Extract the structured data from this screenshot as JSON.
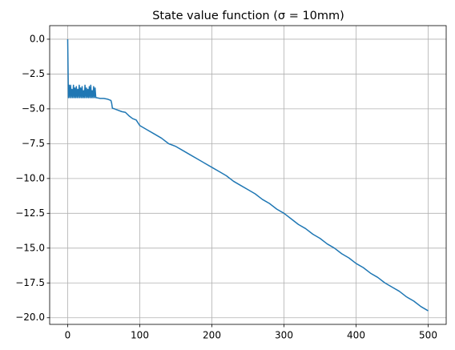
{
  "chart_data": {
    "type": "line",
    "title": "State value function (σ = 10mm)",
    "x": [
      0,
      1,
      2,
      3,
      4,
      5,
      6,
      7,
      8,
      9,
      10,
      11,
      12,
      13,
      14,
      15,
      16,
      17,
      18,
      19,
      20,
      21,
      22,
      23,
      24,
      25,
      26,
      27,
      28,
      29,
      30,
      31,
      32,
      33,
      34,
      35,
      36,
      37,
      38,
      39,
      40,
      45,
      50,
      55,
      60,
      61,
      62,
      65,
      70,
      75,
      80,
      85,
      90,
      95,
      100,
      110,
      120,
      130,
      140,
      150,
      160,
      170,
      180,
      190,
      200,
      210,
      220,
      230,
      240,
      250,
      260,
      270,
      280,
      290,
      300,
      310,
      320,
      330,
      340,
      350,
      360,
      370,
      380,
      390,
      400,
      410,
      420,
      430,
      440,
      450,
      460,
      470,
      480,
      490,
      500
    ],
    "series": [
      {
        "color": "#1f77b4",
        "values": [
          0,
          -4.2,
          -3.3,
          -4.2,
          -3.3,
          -4.2,
          -3.6,
          -4.2,
          -3.3,
          -4.2,
          -3.5,
          -4.2,
          -3.4,
          -4.2,
          -3.6,
          -4.2,
          -3.3,
          -4.2,
          -3.5,
          -4.2,
          -3.4,
          -4.2,
          -3.7,
          -4.2,
          -3.3,
          -4.2,
          -3.5,
          -4.2,
          -3.6,
          -4.2,
          -3.4,
          -4.2,
          -3.3,
          -4.2,
          -3.7,
          -4.2,
          -3.4,
          -4.2,
          -3.5,
          -4.2,
          -4.2,
          -4.25,
          -4.25,
          -4.3,
          -4.4,
          -4.6,
          -4.95,
          -5.0,
          -5.1,
          -5.2,
          -5.25,
          -5.5,
          -5.7,
          -5.8,
          -6.2,
          -6.5,
          -6.8,
          -7.1,
          -7.5,
          -7.7,
          -8.0,
          -8.3,
          -8.6,
          -8.9,
          -9.2,
          -9.5,
          -9.8,
          -10.2,
          -10.5,
          -10.8,
          -11.1,
          -11.5,
          -11.8,
          -12.2,
          -12.5,
          -12.9,
          -13.3,
          -13.6,
          -14.0,
          -14.3,
          -14.7,
          -15.0,
          -15.4,
          -15.7,
          -16.1,
          -16.4,
          -16.8,
          -17.1,
          -17.5,
          -17.8,
          -18.1,
          -18.5,
          -18.8,
          -19.2,
          -19.5
        ]
      }
    ],
    "xlim": [
      -25,
      525
    ],
    "xticks": [
      0,
      100,
      200,
      300,
      400,
      500
    ],
    "ylim": [
      -20.475,
      0.975
    ],
    "yticks": [
      {
        "value": 0,
        "label": "0.0"
      },
      {
        "value": -2.5,
        "label": "−2.5"
      },
      {
        "value": -5,
        "label": "−5.0"
      },
      {
        "value": -7.5,
        "label": "−7.5"
      },
      {
        "value": -10,
        "label": "−10.0"
      },
      {
        "value": -12.5,
        "label": "−12.5"
      },
      {
        "value": -15,
        "label": "−15.0"
      },
      {
        "value": -17.5,
        "label": "−17.5"
      },
      {
        "value": -20,
        "label": "−20.0"
      }
    ],
    "grid": true
  }
}
